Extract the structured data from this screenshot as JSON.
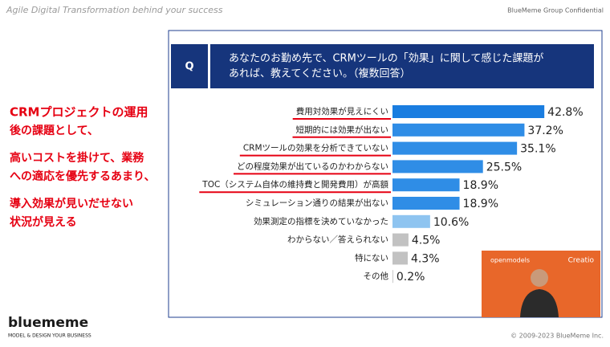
{
  "slide": {
    "header_left": "Agile Digital Transformation behind your success",
    "header_right": "BlueMeme Group Confidential",
    "q_label": "Q",
    "question_lines": [
      "あなたのお勤め先で、CRMツールの「効果」に関して感じた課題が",
      "あれば、教えてください。（複数回答）"
    ],
    "callout_lines": [
      "CRMプロジェクトの運用",
      "後の課題として、",
      "高いコストを掛けて、業務",
      "への適応を優先するあまり、",
      "導入効果が見いだせない",
      "状況が見える"
    ],
    "video_brand_left": "openmodels",
    "video_brand_right": "Creatio",
    "logo": "bluememe",
    "logo_tagline": "MODEL & DESIGN YOUR BUSINESS",
    "copyright": "© 2009-2023 BlueMeme Inc."
  },
  "chart_data": {
    "type": "hbar",
    "categories": [
      "費用対効果が見えにくい",
      "短期的には効果が出ない",
      "CRMツールの効果を分析できていない",
      "どの程度効果が出ているのかわからない",
      "TOC（システム自体の維持費と開発費用）が高額",
      "シミュレーション通りの結果が出ない",
      "効果測定の指標を決めていなかった",
      "わからない／答えられない",
      "特にない",
      "その他"
    ],
    "values": [
      42.8,
      37.2,
      35.1,
      25.5,
      18.9,
      18.9,
      10.6,
      4.5,
      4.3,
      0.2
    ],
    "value_labels": [
      "42.8%",
      "37.2%",
      "35.1%",
      "25.5%",
      "18.9%",
      "18.9%",
      "10.6%",
      "4.5%",
      "4.3%",
      "0.2%"
    ],
    "colors": [
      "#1a7de0",
      "#2f8de6",
      "#2f8de6",
      "#2f8de6",
      "#2f8de6",
      "#2f8de6",
      "#8ec4f0",
      "#c2c2c2",
      "#c2c2c2",
      "#c2c2c2"
    ]
  }
}
